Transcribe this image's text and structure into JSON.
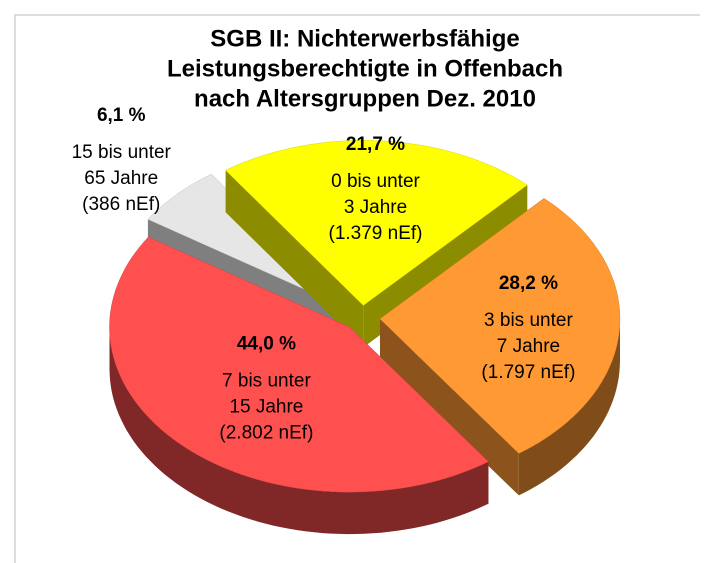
{
  "chart_data": {
    "type": "pie3d",
    "title": [
      "SGB II: Nichterwerbsfähige",
      "Leistungsberechtigte in Offenbach",
      "nach Altersgruppen Dez. 2010"
    ],
    "categories": [
      [
        "0 bis unter",
        "3 Jahre",
        "(1.379 nEf)"
      ],
      [
        "3 bis unter",
        "7 Jahre",
        "(1.797 nEf)"
      ],
      [
        "7 bis unter",
        "15 Jahre",
        "(2.802 nEf)"
      ],
      [
        "15 bis unter",
        "65 Jahre",
        "(386 nEf)"
      ]
    ],
    "values": [
      21.7,
      28.2,
      44.0,
      6.1
    ],
    "value_labels": [
      "21,7 %",
      "28,2 %",
      "44,0 %",
      "6,1 %"
    ],
    "colors": [
      "#ffff00",
      "#ff9933",
      "#ff5050",
      "#e6e6e6"
    ]
  }
}
